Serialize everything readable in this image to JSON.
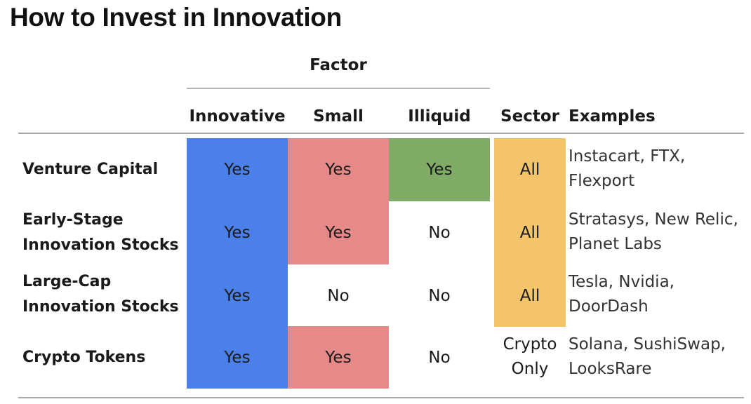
{
  "title": "How to Invest in Innovation",
  "header": {
    "factor": "Factor",
    "columns": [
      "Innovative",
      "Small",
      "Illiquid",
      "Sector",
      "Examples"
    ]
  },
  "colors": {
    "innovative": "#4a80e8",
    "small": "#e58989",
    "illiquid": "#7fab67",
    "sector": "#f3c46a"
  },
  "rows": [
    {
      "label_line1": "Venture Capital",
      "label_line2": "",
      "innovative": "Yes",
      "small": "Yes",
      "illiquid": "Yes",
      "sector": "All",
      "examples_line1": "Instacart, FTX,",
      "examples_line2": "Flexport"
    },
    {
      "label_line1": "Early-Stage",
      "label_line2": "Innovation Stocks",
      "innovative": "Yes",
      "small": "Yes",
      "illiquid": "No",
      "sector": "All",
      "examples_line1": "Stratasys, New Relic,",
      "examples_line2": "Planet Labs"
    },
    {
      "label_line1": "Large-Cap",
      "label_line2": "Innovation Stocks",
      "innovative": "Yes",
      "small": "No",
      "illiquid": "No",
      "sector": "All",
      "examples_line1": "Tesla, Nvidia,",
      "examples_line2": "DoorDash"
    },
    {
      "label_line1": "Crypto Tokens",
      "label_line2": "",
      "innovative": "Yes",
      "small": "Yes",
      "illiquid": "No",
      "sector_line1": "Crypto",
      "sector_line2": "Only",
      "examples_line1": "Solana, SushiSwap,",
      "examples_line2": "LooksRare"
    }
  ]
}
